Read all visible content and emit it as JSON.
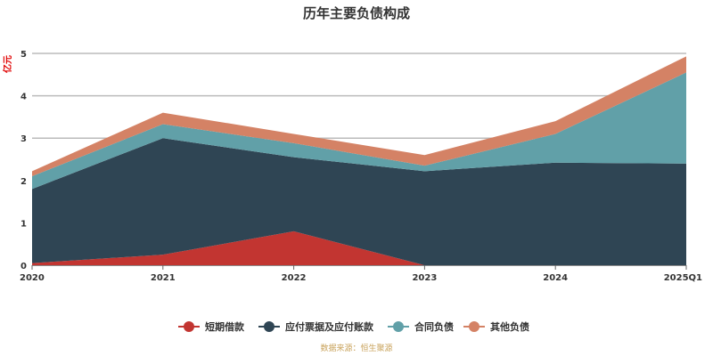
{
  "chart_data": {
    "type": "area",
    "title": "历年主要负债构成",
    "ylabel": "亿元",
    "categories": [
      "2020",
      "2021",
      "2022",
      "2023",
      "2024",
      "2025Q1"
    ],
    "ylim": [
      0,
      5
    ],
    "yticks": [
      0,
      1,
      2,
      3,
      4,
      5
    ],
    "stacked": true,
    "series": [
      {
        "name": "短期借款",
        "values": [
          0.05,
          0.25,
          0.8,
          0.0,
          0.0,
          0.0
        ],
        "color": "#c23531"
      },
      {
        "name": "应付票据及应付账款",
        "values": [
          1.75,
          2.75,
          1.75,
          2.22,
          2.42,
          2.4
        ],
        "color": "#2f4554"
      },
      {
        "name": "合同负债",
        "values": [
          0.3,
          0.33,
          0.33,
          0.13,
          0.68,
          2.15
        ],
        "color": "#61a0a8"
      },
      {
        "name": "其他负债",
        "values": [
          0.12,
          0.27,
          0.22,
          0.25,
          0.3,
          0.38
        ],
        "color": "#d48265"
      }
    ],
    "grid": true,
    "legend_position": "bottom",
    "source": "数据来源：恒生聚源"
  }
}
